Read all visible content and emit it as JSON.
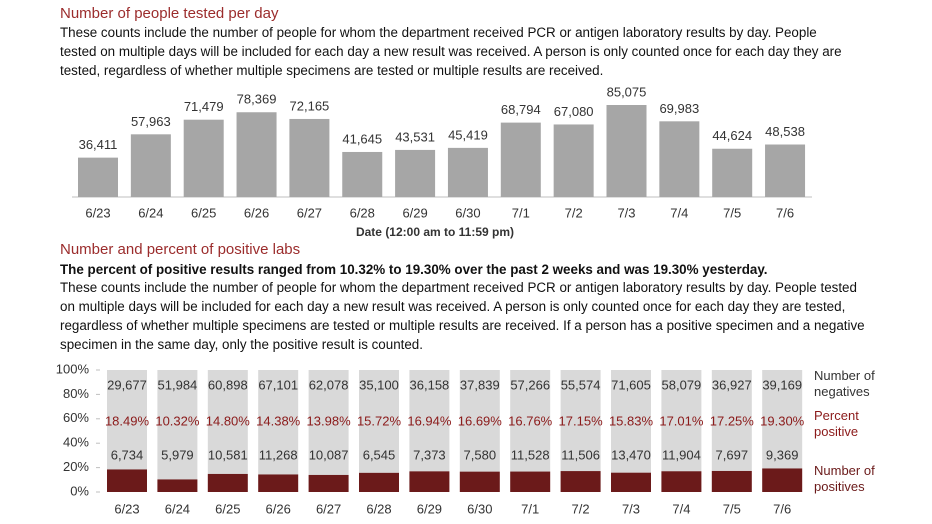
{
  "chart_data": [
    {
      "type": "bar",
      "title": "Number of people tested per day",
      "subtitle": "These counts include the number of people for whom the department received PCR or antigen laboratory results by day. People tested on multiple days will be included for each day a new result was received. A person is only counted once for each day they are tested, regardless of whether multiple specimens are tested or multiple results are received.",
      "xlabel": "Date (12:00 am to 11:59 pm)",
      "categories": [
        "6/23",
        "6/24",
        "6/25",
        "6/26",
        "6/27",
        "6/28",
        "6/29",
        "6/30",
        "7/1",
        "7/2",
        "7/3",
        "7/4",
        "7/5",
        "7/6"
      ],
      "values": [
        36411,
        57963,
        71479,
        78369,
        72165,
        41645,
        43531,
        45419,
        68794,
        67080,
        85075,
        69983,
        44624,
        48538
      ],
      "value_labels": [
        "36,411",
        "57,963",
        "71,479",
        "78,369",
        "72,165",
        "41,645",
        "43,531",
        "45,419",
        "68,794",
        "67,080",
        "85,075",
        "69,983",
        "44,624",
        "48,538"
      ],
      "color": "#a6a6a6"
    },
    {
      "type": "stacked_bar_percent",
      "title": "Number and percent of positive labs",
      "subtitle": "The percent of positive results ranged from 10.32% to 19.30% over the past 2 weeks and was 19.30% yesterday.",
      "description": "These counts include the number of people for whom the department received PCR or antigen laboratory results by day. People tested on multiple days will be included for each day a new result was received. A person is only counted once for each day they are tested, regardless of whether multiple specimens are tested or multiple results are received. If a person has a positive specimen and a negative specimen in the same day, only the positive result is counted.",
      "categories": [
        "6/23",
        "6/24",
        "6/25",
        "6/26",
        "6/27",
        "6/28",
        "6/29",
        "6/30",
        "7/1",
        "7/2",
        "7/3",
        "7/4",
        "7/5",
        "7/6"
      ],
      "ylim": [
        0,
        100
      ],
      "yticks": [
        {
          "value": 0,
          "label": "0%"
        },
        {
          "value": 20,
          "label": "20%"
        },
        {
          "value": 40,
          "label": "40%"
        },
        {
          "value": 60,
          "label": "60%"
        },
        {
          "value": 80,
          "label": "80%"
        },
        {
          "value": 100,
          "label": "100%"
        }
      ],
      "series": [
        {
          "name": "Number of negatives",
          "color": "#d9d9d9",
          "values": [
            29677,
            51984,
            60898,
            67101,
            62078,
            35100,
            36158,
            37839,
            57266,
            55574,
            71605,
            58079,
            36927,
            39169
          ],
          "value_labels": [
            "29,677",
            "51,984",
            "60,898",
            "67,101",
            "62,078",
            "35,100",
            "36,158",
            "37,839",
            "57,266",
            "55,574",
            "71,605",
            "58,079",
            "36,927",
            "39,169"
          ]
        },
        {
          "name": "Percent positive",
          "color": "#8b1a1a",
          "values": [
            18.49,
            10.32,
            14.8,
            14.38,
            13.98,
            15.72,
            16.94,
            16.69,
            16.76,
            17.15,
            15.83,
            17.01,
            17.25,
            19.3
          ],
          "value_labels": [
            "18.49%",
            "10.32%",
            "14.80%",
            "14.38%",
            "13.98%",
            "15.72%",
            "16.94%",
            "16.69%",
            "16.76%",
            "17.15%",
            "15.83%",
            "17.01%",
            "17.25%",
            "19.30%"
          ]
        },
        {
          "name": "Number of positives",
          "color": "#6b1a1a",
          "values": [
            6734,
            5979,
            10581,
            11268,
            10087,
            6545,
            7373,
            7580,
            11528,
            11506,
            13470,
            11904,
            7697,
            9369
          ],
          "value_labels": [
            "6,734",
            "5,979",
            "10,581",
            "11,268",
            "10,087",
            "6,545",
            "7,373",
            "7,580",
            "11,528",
            "11,506",
            "13,470",
            "11,904",
            "7,697",
            "9,369"
          ]
        }
      ]
    }
  ]
}
